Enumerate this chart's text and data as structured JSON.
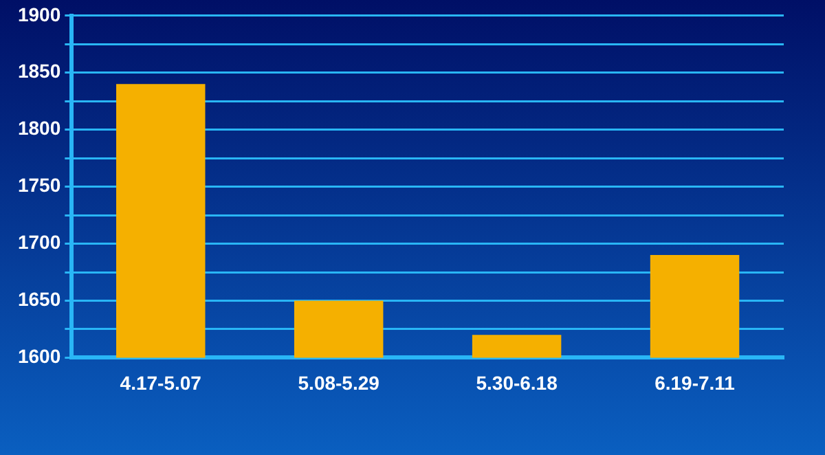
{
  "chart_data": {
    "type": "bar",
    "categories": [
      "4.17-5.07",
      "5.08-5.29",
      "5.30-6.18",
      "6.19-7.11"
    ],
    "values": [
      1840,
      1650,
      1620,
      1690
    ],
    "color": "#f5b000",
    "ylim": [
      1600,
      1900
    ],
    "yticks": [
      1600,
      {
        "value": 1625,
        "label": null
      },
      1650,
      {
        "value": 1675,
        "label": null
      },
      1700,
      {
        "value": 1725,
        "label": null
      },
      1750,
      {
        "value": 1775,
        "label": null
      },
      1800,
      {
        "value": 1825,
        "label": null
      },
      1850,
      {
        "value": 1875,
        "label": null
      },
      1900
    ],
    "grid": "y",
    "legend": false
  }
}
